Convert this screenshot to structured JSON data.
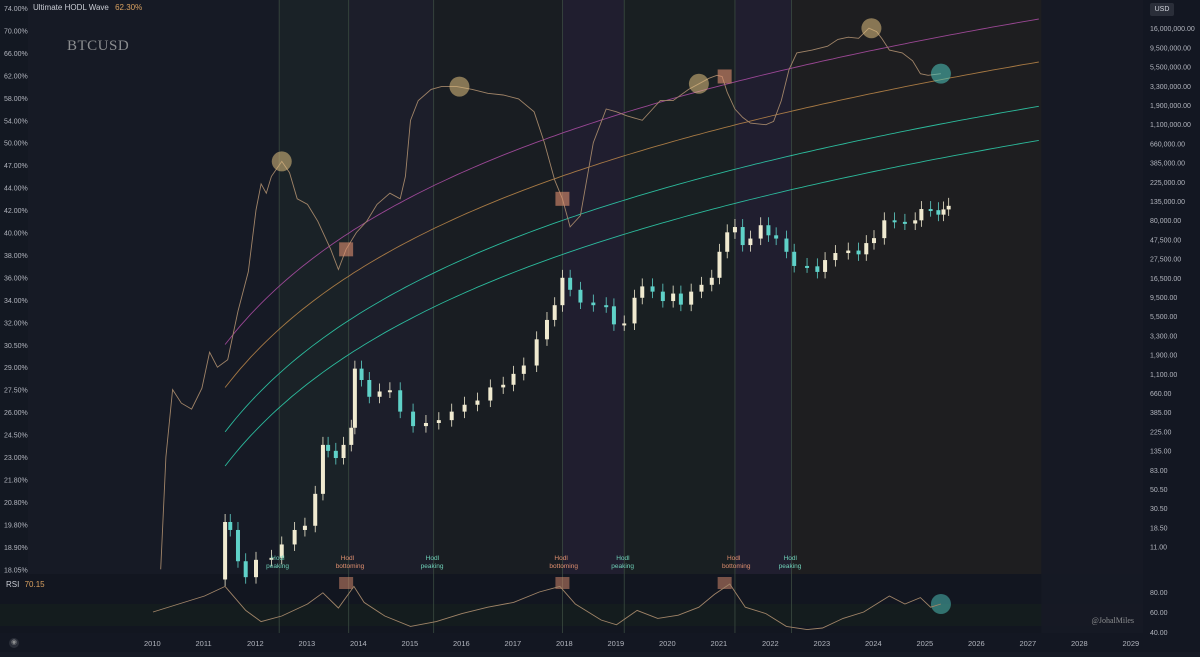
{
  "symbol": "BTCUSD",
  "indicator": {
    "name": "Ultimate HODL Wave",
    "value": "62.30%"
  },
  "currency_badge": "USD",
  "rsi": {
    "name": "RSI",
    "value": "70.15"
  },
  "watermark": "@JohalMiles",
  "corner_icon": "tradingview-logo-icon",
  "colors": {
    "background": "#161a25",
    "hodl_line": "#a08468",
    "candle_up": "#f0ead0",
    "candle_down": "#5fd1c8",
    "band_outer": "#b04fa8",
    "band_mid": "#c08a4a",
    "band_inner": "#2fd6b2",
    "circle_marker": "#e0c080",
    "square_marker": "#e09070"
  },
  "chart_data": {
    "type": "line",
    "title": "",
    "x_ticks": [
      "2010",
      "2011",
      "2012",
      "2013",
      "2014",
      "2015",
      "2016",
      "2017",
      "2018",
      "2019",
      "2020",
      "2021",
      "2022",
      "2023",
      "2024",
      "2025",
      "2026",
      "2027",
      "2028",
      "2029"
    ],
    "left_axis_label": "Ultimate HODL Wave",
    "left_ticks": [
      "74.00%",
      "70.00%",
      "66.00%",
      "62.00%",
      "58.00%",
      "54.00%",
      "50.00%",
      "47.00%",
      "44.00%",
      "42.00%",
      "40.00%",
      "38.00%",
      "36.00%",
      "34.00%",
      "32.00%",
      "30.50%",
      "29.00%",
      "27.50%",
      "26.00%",
      "24.50%",
      "23.00%",
      "21.80%",
      "20.80%",
      "19.80%",
      "18.90%",
      "18.05%"
    ],
    "right_axis_label": "USD",
    "right_scale": "log",
    "right_ticks": [
      "26,000,000.00",
      "16,000,000.00",
      "9,500,000.00",
      "5,500,000.00",
      "3,300,000.00",
      "1,900,000.00",
      "1,100,000.00",
      "660,000.00",
      "385,000.00",
      "225,000.00",
      "135,000.00",
      "80,000.00",
      "47,500.00",
      "27,500.00",
      "16,500.00",
      "9,500.00",
      "5,500.00",
      "3,300.00",
      "1,900.00",
      "1,100.00",
      "660.00",
      "385.00",
      "225.00",
      "135.00",
      "83.00",
      "50.50",
      "30.50",
      "18.50",
      "11.00"
    ],
    "rsi_ticks": [
      "80.00",
      "60.00",
      "40.00"
    ],
    "series": [
      {
        "name": "Ultimate HODL Wave",
        "unit": "%",
        "points": [
          [
            2010.15,
            18.0
          ],
          [
            2010.25,
            23.0
          ],
          [
            2010.38,
            27.5
          ],
          [
            2010.55,
            26.6
          ],
          [
            2010.75,
            26.2
          ],
          [
            2010.95,
            27.6
          ],
          [
            2011.1,
            30.0
          ],
          [
            2011.25,
            29.0
          ],
          [
            2011.45,
            29.5
          ],
          [
            2011.65,
            33.0
          ],
          [
            2011.85,
            36.5
          ],
          [
            2012.0,
            42.0
          ],
          [
            2012.1,
            44.5
          ],
          [
            2012.2,
            43.5
          ],
          [
            2012.3,
            45.5
          ],
          [
            2012.5,
            47.5
          ],
          [
            2012.65,
            46.0
          ],
          [
            2012.8,
            43.0
          ],
          [
            2013.0,
            42.5
          ],
          [
            2013.2,
            41.0
          ],
          [
            2013.45,
            38.5
          ],
          [
            2013.6,
            36.7
          ],
          [
            2013.75,
            38.5
          ],
          [
            2013.95,
            40.0
          ],
          [
            2014.15,
            41.0
          ],
          [
            2014.35,
            42.5
          ],
          [
            2014.6,
            43.5
          ],
          [
            2014.8,
            43.0
          ],
          [
            2014.9,
            45.5
          ],
          [
            2015.0,
            54.0
          ],
          [
            2015.15,
            57.5
          ],
          [
            2015.4,
            59.5
          ],
          [
            2015.6,
            60.0
          ],
          [
            2015.9,
            60.0
          ],
          [
            2016.2,
            59.5
          ],
          [
            2016.5,
            58.8
          ],
          [
            2016.8,
            58.5
          ],
          [
            2017.1,
            57.8
          ],
          [
            2017.4,
            55.5
          ],
          [
            2017.6,
            50.0
          ],
          [
            2017.8,
            45.0
          ],
          [
            2017.95,
            43.0
          ],
          [
            2018.1,
            40.5
          ],
          [
            2018.3,
            41.5
          ],
          [
            2018.55,
            50.0
          ],
          [
            2018.8,
            56.0
          ],
          [
            2019.0,
            55.5
          ],
          [
            2019.2,
            54.8
          ],
          [
            2019.5,
            54.0
          ],
          [
            2019.7,
            56.0
          ],
          [
            2019.85,
            57.5
          ],
          [
            2020.1,
            57.5
          ],
          [
            2020.4,
            59.5
          ],
          [
            2020.6,
            60.5
          ],
          [
            2020.8,
            61.5
          ],
          [
            2020.95,
            62.0
          ],
          [
            2021.05,
            61.8
          ],
          [
            2021.15,
            59.0
          ],
          [
            2021.3,
            56.0
          ],
          [
            2021.45,
            54.5
          ],
          [
            2021.6,
            53.5
          ],
          [
            2021.9,
            53.2
          ],
          [
            2022.05,
            53.8
          ],
          [
            2022.2,
            57.5
          ],
          [
            2022.35,
            63.0
          ],
          [
            2022.5,
            66.0
          ],
          [
            2022.8,
            66.5
          ],
          [
            2023.1,
            67.2
          ],
          [
            2023.3,
            68.4
          ],
          [
            2023.5,
            68.8
          ],
          [
            2023.7,
            68.6
          ],
          [
            2023.9,
            70.4
          ],
          [
            2024.05,
            69.8
          ],
          [
            2024.15,
            68.6
          ],
          [
            2024.3,
            66.5
          ],
          [
            2024.55,
            66.0
          ],
          [
            2024.75,
            64.6
          ],
          [
            2024.9,
            62.3
          ],
          [
            2025.05,
            62.0
          ],
          [
            2025.3,
            62.3
          ]
        ]
      },
      {
        "name": "BTCUSD",
        "unit": "USD",
        "scale": "log",
        "points": [
          [
            2011.3,
            3
          ],
          [
            2011.4,
            15
          ],
          [
            2011.5,
            12
          ],
          [
            2011.65,
            5
          ],
          [
            2011.8,
            3.2
          ],
          [
            2012.0,
            5.2
          ],
          [
            2012.3,
            5.5
          ],
          [
            2012.5,
            8
          ],
          [
            2012.75,
            12
          ],
          [
            2012.95,
            13.5
          ],
          [
            2013.15,
            33
          ],
          [
            2013.3,
            130
          ],
          [
            2013.4,
            110
          ],
          [
            2013.55,
            90
          ],
          [
            2013.7,
            130
          ],
          [
            2013.85,
            210
          ],
          [
            2013.92,
            1100
          ],
          [
            2014.05,
            800
          ],
          [
            2014.2,
            500
          ],
          [
            2014.4,
            580
          ],
          [
            2014.6,
            600
          ],
          [
            2014.8,
            330
          ],
          [
            2015.05,
            220
          ],
          [
            2015.3,
            240
          ],
          [
            2015.55,
            260
          ],
          [
            2015.8,
            330
          ],
          [
            2016.05,
            400
          ],
          [
            2016.3,
            450
          ],
          [
            2016.55,
            650
          ],
          [
            2016.8,
            700
          ],
          [
            2017.0,
            950
          ],
          [
            2017.2,
            1200
          ],
          [
            2017.45,
            2500
          ],
          [
            2017.65,
            4300
          ],
          [
            2017.8,
            6500
          ],
          [
            2017.95,
            14000
          ],
          [
            2018.1,
            10000
          ],
          [
            2018.3,
            7000
          ],
          [
            2018.55,
            6500
          ],
          [
            2018.8,
            6300
          ],
          [
            2018.95,
            3800
          ],
          [
            2019.15,
            3900
          ],
          [
            2019.35,
            8000
          ],
          [
            2019.5,
            11000
          ],
          [
            2019.7,
            9500
          ],
          [
            2019.9,
            7300
          ],
          [
            2020.1,
            9000
          ],
          [
            2020.25,
            6600
          ],
          [
            2020.45,
            9500
          ],
          [
            2020.65,
            11500
          ],
          [
            2020.85,
            14000
          ],
          [
            2021.0,
            29000
          ],
          [
            2021.15,
            50000
          ],
          [
            2021.3,
            58000
          ],
          [
            2021.45,
            35000
          ],
          [
            2021.6,
            42000
          ],
          [
            2021.8,
            61000
          ],
          [
            2021.95,
            46000
          ],
          [
            2022.1,
            42000
          ],
          [
            2022.3,
            29000
          ],
          [
            2022.45,
            19500
          ],
          [
            2022.7,
            19300
          ],
          [
            2022.9,
            16500
          ],
          [
            2023.05,
            23000
          ],
          [
            2023.25,
            28000
          ],
          [
            2023.5,
            30000
          ],
          [
            2023.7,
            27000
          ],
          [
            2023.85,
            37000
          ],
          [
            2024.0,
            42500
          ],
          [
            2024.2,
            70000
          ],
          [
            2024.4,
            67000
          ],
          [
            2024.6,
            64000
          ],
          [
            2024.8,
            70000
          ],
          [
            2024.92,
            96000
          ],
          [
            2025.1,
            93000
          ],
          [
            2025.25,
            82000
          ],
          [
            2025.35,
            95000
          ],
          [
            2025.45,
            105000
          ]
        ]
      },
      {
        "name": "RSI",
        "unit": "",
        "points": [
          [
            2010.0,
            60
          ],
          [
            2011.0,
            80
          ],
          [
            2011.4,
            92
          ],
          [
            2011.8,
            62
          ],
          [
            2012.1,
            48
          ],
          [
            2012.5,
            55
          ],
          [
            2013.0,
            70
          ],
          [
            2013.3,
            84
          ],
          [
            2013.6,
            65
          ],
          [
            2013.9,
            92
          ],
          [
            2014.1,
            72
          ],
          [
            2014.5,
            55
          ],
          [
            2015.0,
            42
          ],
          [
            2015.5,
            48
          ],
          [
            2016.0,
            58
          ],
          [
            2016.5,
            66
          ],
          [
            2017.0,
            72
          ],
          [
            2017.5,
            85
          ],
          [
            2017.9,
            92
          ],
          [
            2018.2,
            70
          ],
          [
            2018.7,
            50
          ],
          [
            2019.0,
            44
          ],
          [
            2019.4,
            62
          ],
          [
            2019.8,
            52
          ],
          [
            2020.2,
            56
          ],
          [
            2020.6,
            66
          ],
          [
            2020.9,
            82
          ],
          [
            2021.2,
            95
          ],
          [
            2021.5,
            66
          ],
          [
            2021.9,
            58
          ],
          [
            2022.3,
            42
          ],
          [
            2022.7,
            38
          ],
          [
            2023.0,
            40
          ],
          [
            2023.4,
            52
          ],
          [
            2023.8,
            60
          ],
          [
            2024.1,
            72
          ],
          [
            2024.3,
            80
          ],
          [
            2024.6,
            70
          ],
          [
            2024.9,
            78
          ],
          [
            2025.1,
            66
          ],
          [
            2025.3,
            70
          ]
        ]
      }
    ],
    "log_regression_bands": [
      "upper",
      "middle",
      "lower"
    ],
    "cycle_labels": [
      {
        "text": "Hodl peaking",
        "year": 2012.45
      },
      {
        "text": "Hodl bottoming",
        "year": 2013.8
      },
      {
        "text": "Hodl peaking",
        "year": 2015.45
      },
      {
        "text": "Hodl bottoming",
        "year": 2017.95
      },
      {
        "text": "Hodl peaking",
        "year": 2019.15
      },
      {
        "text": "Hodl bottoming",
        "year": 2021.3
      },
      {
        "text": "Hodl peaking",
        "year": 2022.4
      }
    ],
    "circle_markers": [
      2012.5,
      2015.95,
      2020.6,
      2023.95
    ],
    "square_markers": [
      2013.75,
      2017.95,
      2021.1
    ],
    "grid": false,
    "legend": "top-left"
  }
}
